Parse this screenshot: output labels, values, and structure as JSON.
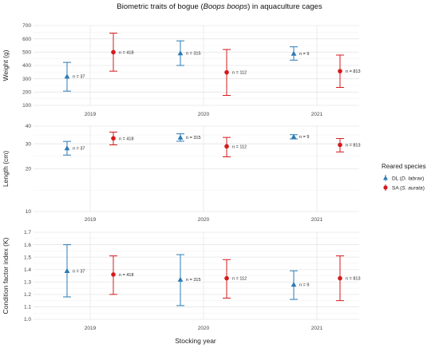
{
  "chart_data": {
    "type": "errorbar",
    "title_parts": [
      "Biometric traits of bogue (",
      "Boops boops",
      ") in aquaculture cages"
    ],
    "xlabel": "Stocking year",
    "categories": [
      "2019",
      "2020",
      "2021"
    ],
    "legend": {
      "title": "Reared species",
      "placement": "right",
      "entries": [
        {
          "key": "DL",
          "prefix": "DL (",
          "italic": "D. labrax",
          "suffix": ")",
          "color": "#2c7bb6",
          "marker": "triangle"
        },
        {
          "key": "SA",
          "prefix": "SA (",
          "italic": "S. aurata",
          "suffix": ")",
          "color": "#d7191c",
          "marker": "circle"
        }
      ]
    },
    "panels": [
      {
        "ylabel": "Weight (g)",
        "ylim": [
          100,
          700
        ],
        "yticks": [
          100,
          200,
          300,
          400,
          500,
          600,
          700
        ],
        "points": [
          {
            "series": "DL",
            "category": "2019",
            "y": 318,
            "low": 207,
            "high": 423,
            "n_label": "n = 37"
          },
          {
            "series": "SA",
            "category": "2019",
            "y": 500,
            "low": 357,
            "high": 643,
            "n_label": "n = 418"
          },
          {
            "series": "DL",
            "category": "2020",
            "y": 493,
            "low": 400,
            "high": 585,
            "n_label": "n = 315"
          },
          {
            "series": "SA",
            "category": "2020",
            "y": 348,
            "low": 175,
            "high": 520,
            "n_label": "n = 112"
          },
          {
            "series": "DL",
            "category": "2021",
            "y": 490,
            "low": 440,
            "high": 540,
            "n_label": "n = 9"
          },
          {
            "series": "SA",
            "category": "2021",
            "y": 357,
            "low": 235,
            "high": 478,
            "n_label": "n = 813"
          }
        ]
      },
      {
        "ylabel": "Length (cm)",
        "ylim": [
          10,
          40
        ],
        "yticks": [
          10,
          20,
          30,
          40
        ],
        "log": true,
        "points": [
          {
            "series": "DL",
            "category": "2019",
            "y": 28.0,
            "low": 25.0,
            "high": 31.2,
            "n_label": "n = 37"
          },
          {
            "series": "SA",
            "category": "2019",
            "y": 32.8,
            "low": 29.5,
            "high": 36.3,
            "n_label": "n = 418"
          },
          {
            "series": "DL",
            "category": "2020",
            "y": 33.3,
            "low": 31.3,
            "high": 35.3,
            "n_label": "n = 315"
          },
          {
            "series": "SA",
            "category": "2020",
            "y": 28.8,
            "low": 24.3,
            "high": 33.3,
            "n_label": "n = 112"
          },
          {
            "series": "DL",
            "category": "2021",
            "y": 33.7,
            "low": 32.5,
            "high": 34.8,
            "n_label": "n = 9"
          },
          {
            "series": "SA",
            "category": "2021",
            "y": 29.5,
            "low": 26.3,
            "high": 32.7,
            "n_label": "n = 813"
          }
        ]
      },
      {
        "ylabel": "Condition  factor index (K)",
        "ylim": [
          1.0,
          1.7
        ],
        "yticks": [
          1.0,
          1.1,
          1.2,
          1.3,
          1.4,
          1.5,
          1.6,
          1.7
        ],
        "points": [
          {
            "series": "DL",
            "category": "2019",
            "y": 1.39,
            "low": 1.18,
            "high": 1.6,
            "n_label": "n = 37"
          },
          {
            "series": "SA",
            "category": "2019",
            "y": 1.36,
            "low": 1.2,
            "high": 1.51,
            "n_label": "n = 418"
          },
          {
            "series": "DL",
            "category": "2020",
            "y": 1.32,
            "low": 1.11,
            "high": 1.52,
            "n_label": "n = 315"
          },
          {
            "series": "SA",
            "category": "2020",
            "y": 1.33,
            "low": 1.17,
            "high": 1.48,
            "n_label": "n = 112"
          },
          {
            "series": "DL",
            "category": "2021",
            "y": 1.28,
            "low": 1.16,
            "high": 1.39,
            "n_label": "n = 9"
          },
          {
            "series": "SA",
            "category": "2021",
            "y": 1.33,
            "low": 1.15,
            "high": 1.51,
            "n_label": "n = 813"
          }
        ]
      }
    ]
  }
}
